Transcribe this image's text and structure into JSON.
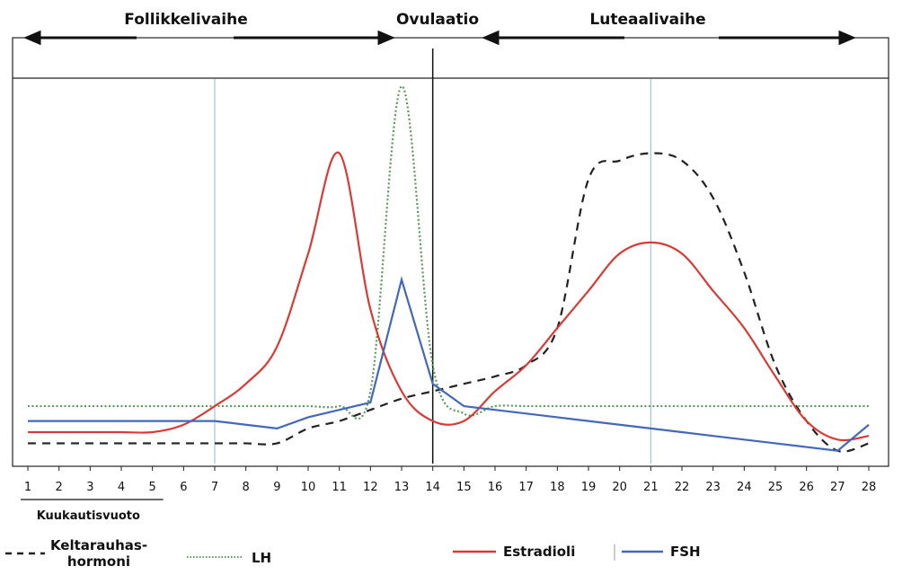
{
  "phases": {
    "follicular": "Follikkelivaihe",
    "ovulation": "Ovulaatio",
    "luteal": "Luteaalivaihe"
  },
  "menstruation_label": "Kuukautisvuoto",
  "chart_data": {
    "type": "line",
    "x": [
      1,
      2,
      3,
      4,
      5,
      6,
      7,
      8,
      9,
      10,
      11,
      12,
      13,
      14,
      15,
      16,
      17,
      18,
      19,
      20,
      21,
      22,
      23,
      24,
      25,
      26,
      27,
      28
    ],
    "xlim": [
      1,
      28
    ],
    "ylim": [
      0,
      100
    ],
    "grid": false,
    "legend_position": "bottom",
    "ovulation_day": 14,
    "reference_days": [
      7,
      21
    ],
    "series": [
      {
        "name": "Keltarauhas-hormoni",
        "style": "dashed",
        "color": "#222222",
        "values": [
          4,
          4,
          4,
          4,
          4,
          4,
          4,
          4,
          4,
          8,
          10,
          13,
          16,
          18,
          20,
          22,
          25,
          35,
          75,
          80,
          82,
          80,
          70,
          50,
          25,
          10,
          2,
          4
        ]
      },
      {
        "name": "LH",
        "style": "dotted",
        "color": "#5a9a5a",
        "values": [
          14,
          14,
          14,
          14,
          14,
          14,
          14,
          14,
          14,
          14,
          14,
          18,
          100,
          25,
          12,
          14,
          14,
          14,
          14,
          14,
          14,
          14,
          14,
          14,
          14,
          14,
          14,
          14
        ]
      },
      {
        "name": "Estradioli",
        "style": "solid",
        "color": "#d93a35",
        "values": [
          7,
          7,
          7,
          7,
          7,
          9,
          14,
          20,
          30,
          55,
          82,
          40,
          18,
          10,
          10,
          18,
          25,
          35,
          45,
          55,
          58,
          55,
          45,
          35,
          22,
          10,
          5,
          6
        ]
      },
      {
        "name": "FSH",
        "style": "solid",
        "color": "#4468b8",
        "values": [
          10,
          10,
          10,
          10,
          10,
          10,
          10,
          9,
          8,
          11,
          13,
          15,
          48,
          20,
          14,
          13,
          12,
          11,
          10,
          9,
          8,
          7,
          6,
          5,
          4,
          3,
          2,
          9
        ]
      }
    ]
  }
}
